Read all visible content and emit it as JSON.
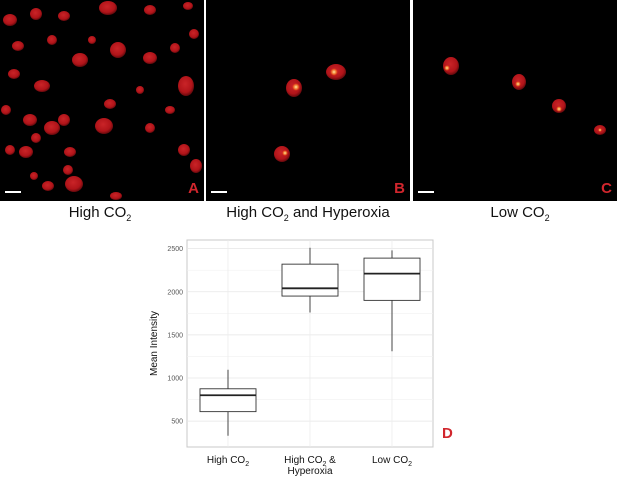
{
  "panels": [
    {
      "letter": "A",
      "caption_pre": "High CO",
      "caption_sub": "2",
      "caption_post": ""
    },
    {
      "letter": "B",
      "caption_pre": "High CO",
      "caption_sub": "2",
      "caption_post": " and Hyperoxia"
    },
    {
      "letter": "C",
      "caption_pre": "Low CO",
      "caption_sub": "2",
      "caption_post": ""
    }
  ],
  "colors": {
    "cell": "#c4161c",
    "cell_dark": "#6e0a0e",
    "hotspot": "#fff2a8",
    "accent_letter": "#d1262d"
  },
  "chart_label": "D",
  "chart_data": {
    "type": "boxplot",
    "ylabel": "Mean Intensity",
    "ylim": [
      200,
      2600
    ],
    "yticks": [
      500,
      1000,
      1500,
      2000,
      2500
    ],
    "grid": true,
    "categories": [
      {
        "label_lines": [
          {
            "pre": "High CO",
            "sub": "2",
            "post": ""
          }
        ]
      },
      {
        "label_lines": [
          {
            "pre": "High CO",
            "sub": "2",
            "post": " &"
          },
          {
            "pre": "Hyperoxia",
            "sub": "",
            "post": ""
          }
        ]
      },
      {
        "label_lines": [
          {
            "pre": "Low CO",
            "sub": "2",
            "post": ""
          }
        ]
      }
    ],
    "boxes": [
      {
        "min": 330,
        "q1": 610,
        "median": 800,
        "q3": 875,
        "max": 1095
      },
      {
        "min": 1760,
        "q1": 1950,
        "median": 2040,
        "q3": 2320,
        "max": 2510
      },
      {
        "min": 1310,
        "q1": 1900,
        "median": 2210,
        "q3": 2390,
        "max": 2480
      }
    ]
  }
}
